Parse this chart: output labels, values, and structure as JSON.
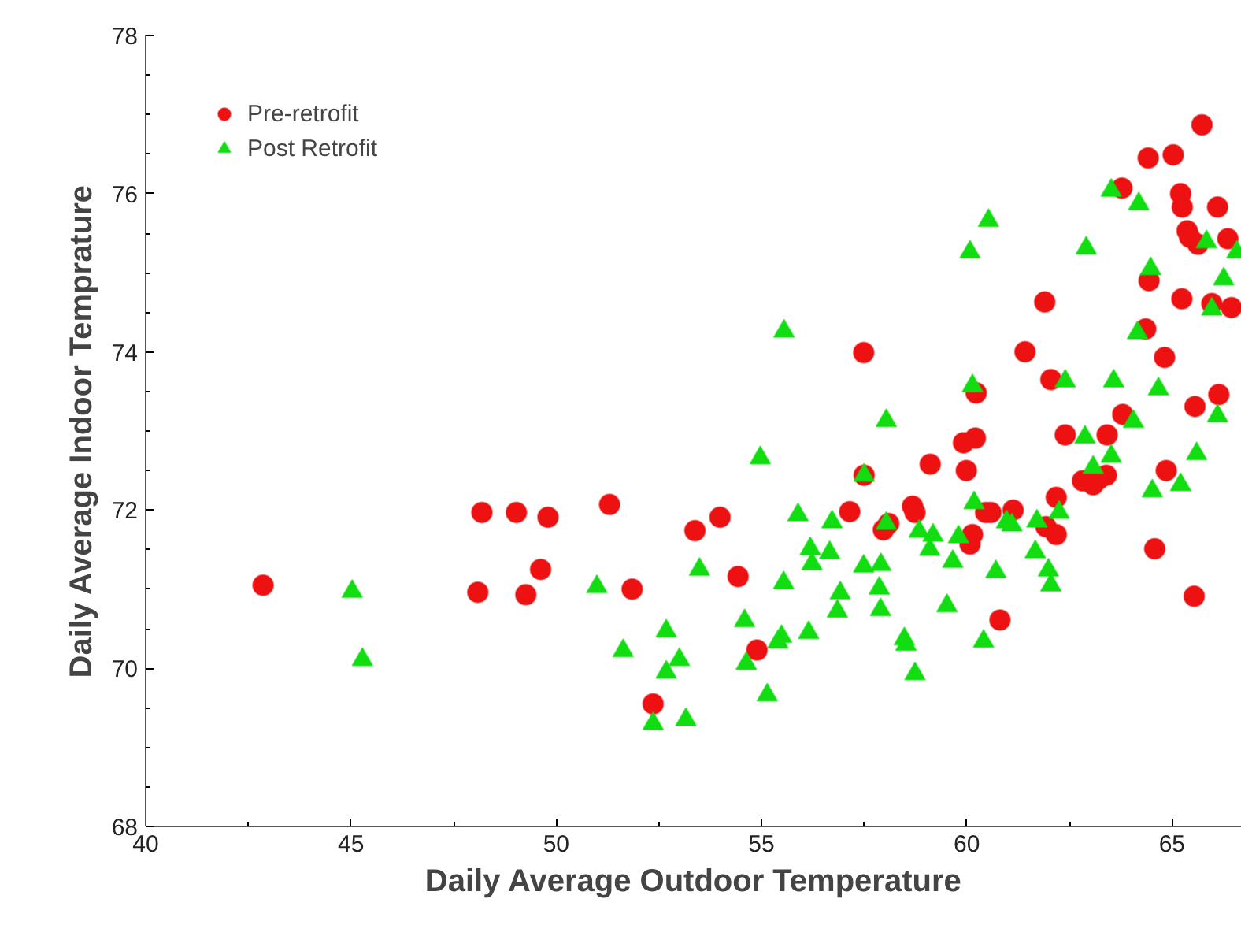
{
  "chart_data": {
    "type": "scatter",
    "xlabel": "Daily Average Outdoor Temperature",
    "ylabel": "Daily Average Indoor Temprature",
    "xlim": [
      40,
      66.7
    ],
    "xticks": [
      40,
      45,
      50,
      55,
      60,
      65
    ],
    "ylim": [
      68,
      78
    ],
    "yticks": [
      68,
      70,
      72,
      74,
      76,
      78
    ],
    "grid": false,
    "legend": "top left",
    "series": [
      {
        "name": "Pre-retrofit",
        "color": "#ee1111",
        "marker": "circle",
        "x": [
          42.86,
          48.19,
          49.03,
          49.8,
          51.3,
          49.62,
          48.09,
          49.26,
          51.85,
          52.36,
          57.49,
          60.23,
          59.92,
          60.21,
          59.11,
          59.99,
          57.5,
          60.59,
          57.15,
          58.68,
          58.74,
          57.97,
          58.1,
          53.99,
          53.38,
          60.14,
          60.08,
          54.43,
          54.89,
          65.73,
          64.42,
          65.03,
          63.78,
          65.21,
          65.25,
          66.11,
          65.37,
          65.43,
          65.63,
          66.36,
          64.44,
          61.9,
          65.24,
          65.97,
          66.45,
          64.36,
          61.42,
          64.82,
          62.05,
          66.14,
          65.56,
          63.8,
          62.4,
          63.42,
          62.82,
          63.08,
          63.4,
          63.21,
          64.86,
          62.18,
          60.46,
          61.13,
          61.93,
          62.18,
          64.58,
          65.54,
          60.81
        ],
        "values": [
          71.05,
          71.97,
          71.97,
          71.91,
          72.07,
          71.25,
          70.96,
          70.93,
          71.0,
          69.55,
          73.99,
          73.48,
          72.85,
          72.91,
          72.58,
          72.5,
          72.44,
          71.97,
          71.98,
          72.05,
          71.97,
          71.75,
          71.83,
          71.91,
          71.74,
          71.69,
          71.57,
          71.16,
          70.23,
          76.87,
          76.45,
          76.49,
          76.07,
          76.0,
          75.83,
          75.83,
          75.53,
          75.45,
          75.36,
          75.43,
          74.9,
          74.63,
          74.67,
          74.61,
          74.56,
          74.29,
          74.0,
          73.93,
          73.65,
          73.46,
          73.31,
          73.21,
          72.95,
          72.95,
          72.37,
          72.32,
          72.44,
          72.39,
          72.5,
          72.16,
          71.97,
          72.0,
          71.79,
          71.69,
          71.51,
          70.91,
          70.61
        ]
      },
      {
        "name": "Post Retrofit",
        "color": "#11dd11",
        "marker": "triangle",
        "x": [
          45.03,
          45.28,
          50.99,
          52.68,
          51.63,
          53.0,
          52.68,
          52.36,
          53.16,
          60.08,
          55.55,
          60.14,
          58.04,
          54.97,
          57.5,
          60.18,
          58.04,
          55.89,
          56.72,
          58.84,
          59.18,
          59.1,
          59.8,
          59.66,
          56.19,
          56.66,
          56.23,
          53.49,
          55.54,
          57.49,
          57.91,
          56.92,
          57.87,
          56.85,
          57.9,
          59.52,
          54.59,
          56.15,
          55.49,
          55.4,
          58.48,
          58.52,
          60.41,
          54.63,
          58.74,
          55.14,
          63.52,
          64.19,
          60.53,
          62.91,
          65.84,
          66.58,
          66.26,
          64.48,
          65.97,
          64.16,
          62.4,
          63.58,
          64.67,
          66.11,
          64.06,
          62.88,
          63.52,
          65.6,
          63.08,
          65.21,
          64.52,
          60.97,
          61.1,
          61.71,
          62.25,
          61.67,
          60.71,
          61.99,
          62.05
        ],
        "values": [
          70.97,
          70.11,
          71.03,
          70.47,
          70.22,
          70.11,
          69.95,
          69.3,
          69.35,
          75.26,
          74.26,
          73.57,
          73.13,
          72.66,
          72.44,
          72.09,
          71.83,
          71.94,
          71.85,
          71.73,
          71.68,
          71.5,
          71.66,
          71.35,
          71.51,
          71.46,
          71.32,
          71.25,
          71.08,
          71.29,
          71.31,
          70.95,
          71.01,
          70.72,
          70.74,
          70.79,
          70.6,
          70.45,
          70.4,
          70.33,
          70.37,
          70.3,
          70.34,
          70.06,
          69.93,
          69.66,
          76.04,
          75.87,
          75.66,
          75.31,
          75.39,
          75.26,
          74.92,
          75.05,
          74.54,
          74.24,
          73.63,
          73.63,
          73.53,
          73.19,
          73.12,
          72.92,
          72.68,
          72.71,
          72.54,
          72.32,
          72.24,
          71.85,
          71.81,
          71.86,
          71.97,
          71.47,
          71.22,
          71.24,
          71.05
        ]
      }
    ]
  }
}
